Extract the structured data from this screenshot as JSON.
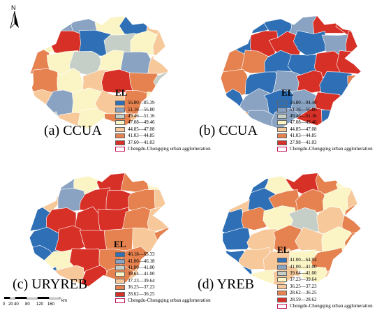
{
  "panels": [
    {
      "caption": "(a) CCUA",
      "legend_title": "EL",
      "classes": [
        {
          "label": "56.80—85.39",
          "color": "#2f6fb5"
        },
        {
          "label": "51.16—56.80",
          "color": "#8aa3c2"
        },
        {
          "label": "49.46—51.16",
          "color": "#c5cfc7"
        },
        {
          "label": "47.08—49.46",
          "color": "#fbf5c6"
        },
        {
          "label": "44.85—47.08",
          "color": "#f6c89a"
        },
        {
          "label": "41.03—44.85",
          "color": "#e5824f"
        },
        {
          "label": "37.60—41.03",
          "color": "#d73027"
        }
      ],
      "boundary_label": "Chengdu-Chongqing urban agglomeration"
    },
    {
      "caption": "(b) CCUA",
      "legend_title": "EL",
      "classes": [
        {
          "label": "56.80—94.40",
          "color": "#2f6fb5"
        },
        {
          "label": "51.16—56.80",
          "color": "#8aa3c2"
        },
        {
          "label": "49.46—51.16",
          "color": "#c5cfc7"
        },
        {
          "label": "47.08—49.46",
          "color": "#fbf5c6"
        },
        {
          "label": "44.85—47.08",
          "color": "#f6c89a"
        },
        {
          "label": "41.03—44.85",
          "color": "#e5824f"
        },
        {
          "label": "27.98—41.03",
          "color": "#d73027"
        }
      ],
      "boundary_label": "Chengdu-Chongqing urban agglomeration"
    },
    {
      "caption": "(c) URYREB",
      "legend_title": "EL",
      "classes": [
        {
          "label": "46.18—65.33",
          "color": "#2f6fb5"
        },
        {
          "label": "41.00—46.18",
          "color": "#8aa3c2"
        },
        {
          "label": "41.00—41.00",
          "color": "#c5cfc7"
        },
        {
          "label": "39.64—41.00",
          "color": "#fbf5c6"
        },
        {
          "label": "37.23—39.64",
          "color": "#f6c89a"
        },
        {
          "label": "36.25—37.23",
          "color": "#e5824f"
        },
        {
          "label": "28.62—36.25",
          "color": "#d73027"
        }
      ],
      "boundary_label": "Chengdu-Chongqing urban agglomeration"
    },
    {
      "caption": "(d) YREB",
      "legend_title": "EL",
      "classes": [
        {
          "label": "41.00—64.94",
          "color": "#2f6fb5"
        },
        {
          "label": "41.00—41.00",
          "color": "#8aa3c2"
        },
        {
          "label": "39.64—41.00",
          "color": "#c5cfc7"
        },
        {
          "label": "37.23—39.64",
          "color": "#fbf5c6"
        },
        {
          "label": "36.25—37.23",
          "color": "#f6c89a"
        },
        {
          "label": "28.62—36.25",
          "color": "#e5824f"
        },
        {
          "label": "28.59—28.62",
          "color": "#d73027"
        }
      ],
      "boundary_label": "Chengdu-Chongqing urban agglomeration"
    }
  ],
  "north_arrow": {
    "label": "N"
  },
  "scale_bar": {
    "ticks": [
      "0",
      "20",
      "40",
      "80",
      "120",
      "160"
    ],
    "unit": "km"
  },
  "boundary_color": "#c2185b"
}
